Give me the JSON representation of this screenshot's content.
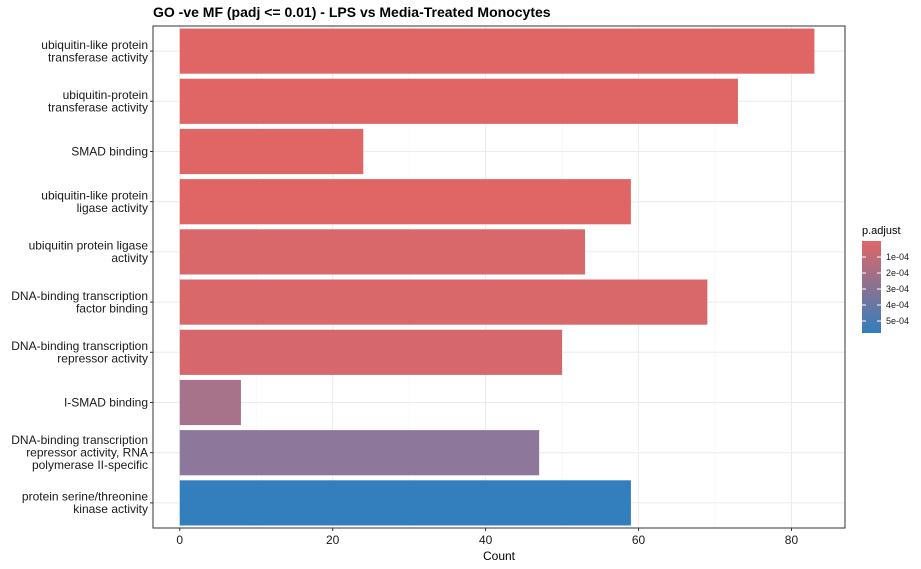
{
  "chart_data": {
    "type": "bar",
    "orientation": "horizontal",
    "title": "GO -ve MF (padj <= 0.01) - LPS vs Media-Treated Monocytes",
    "xlabel": "Count",
    "ylabel": "",
    "xlim": [
      -3.5,
      87
    ],
    "xticks": [
      0,
      20,
      40,
      60,
      80
    ],
    "grid": true,
    "categories": [
      [
        "ubiquitin-like protein",
        "transferase activity"
      ],
      [
        "ubiquitin-protein",
        "transferase activity"
      ],
      [
        "SMAD binding"
      ],
      [
        "ubiquitin-like protein",
        "ligase activity"
      ],
      [
        "ubiquitin protein ligase",
        "activity"
      ],
      [
        "DNA-binding transcription",
        "factor binding"
      ],
      [
        "DNA-binding transcription",
        "repressor activity"
      ],
      [
        "I-SMAD binding"
      ],
      [
        "DNA-binding transcription",
        "repressor activity, RNA",
        "polymerase II-specific"
      ],
      [
        "protein serine/threonine",
        "kinase activity"
      ]
    ],
    "values": [
      83,
      73,
      24,
      59,
      53,
      69,
      50,
      8,
      47,
      59
    ],
    "colors": [
      "#e06666",
      "#e06666",
      "#e06666",
      "#e06666",
      "#d9686b",
      "#d9686b",
      "#d6686d",
      "#a7738a",
      "#8d779a",
      "#337ebc"
    ],
    "legend": {
      "title": "p.adjust",
      "position": "right",
      "gradient": [
        "#e06666",
        "#337ebc"
      ],
      "ticks": [
        "1e-04",
        "2e-04",
        "3e-04",
        "4e-04",
        "5e-04"
      ]
    }
  }
}
